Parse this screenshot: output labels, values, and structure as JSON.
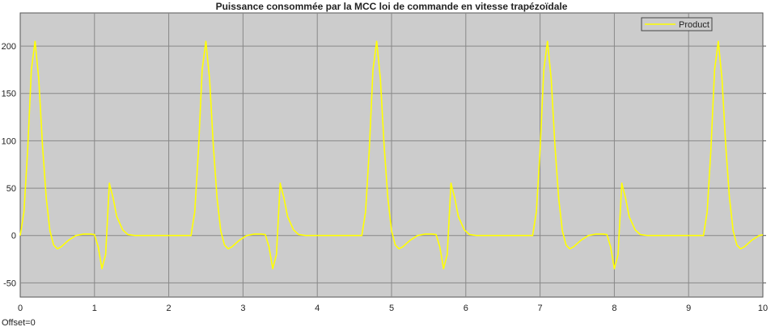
{
  "chart_data": {
    "type": "line",
    "title": "Puissance consommée par la MCC loi de commande en vitesse trapézoïdale",
    "xlabel": "",
    "ylabel": "",
    "xlim": [
      0,
      10
    ],
    "ylim": [
      -65,
      235
    ],
    "xticks": [
      0,
      1,
      2,
      3,
      4,
      5,
      6,
      7,
      8,
      9,
      10
    ],
    "yticks": [
      -50,
      0,
      50,
      100,
      150,
      200
    ],
    "grid": true,
    "legend": {
      "position": "top-right",
      "entries": [
        "Product"
      ]
    },
    "offset_text": "Offset=0",
    "colors": {
      "background": "#cccccc",
      "series": "#ffff00",
      "grid": "#888888"
    },
    "period": 2.3,
    "series": [
      {
        "name": "Product",
        "key_points": [
          [
            0.0,
            0
          ],
          [
            0.05,
            25
          ],
          [
            0.1,
            90
          ],
          [
            0.15,
            175
          ],
          [
            0.2,
            205
          ],
          [
            0.25,
            165
          ],
          [
            0.3,
            95
          ],
          [
            0.35,
            40
          ],
          [
            0.4,
            5
          ],
          [
            0.45,
            -10
          ],
          [
            0.5,
            -14
          ],
          [
            0.55,
            -12
          ],
          [
            0.65,
            -5
          ],
          [
            0.75,
            0
          ],
          [
            0.85,
            1.5
          ],
          [
            0.95,
            1.5
          ],
          [
            1.0,
            1
          ],
          [
            1.05,
            -12
          ],
          [
            1.1,
            -35
          ],
          [
            1.15,
            -20
          ],
          [
            1.2,
            55
          ],
          [
            1.25,
            40
          ],
          [
            1.3,
            20
          ],
          [
            1.38,
            6
          ],
          [
            1.45,
            1
          ],
          [
            1.55,
            0
          ],
          [
            2.3,
            0
          ]
        ]
      }
    ]
  }
}
